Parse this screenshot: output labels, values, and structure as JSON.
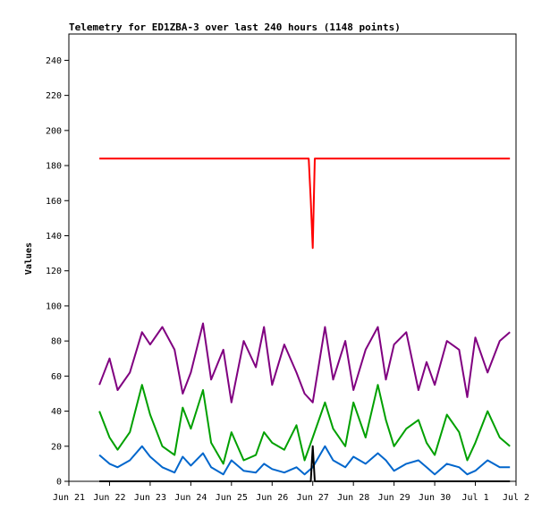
{
  "chart_data": {
    "type": "line",
    "title": "Telemetry for ED1ZBA-3 over last 240 hours (1148 points)",
    "xlabel": "",
    "ylabel": "Values",
    "xlim": [
      0,
      11
    ],
    "ylim": [
      0,
      255
    ],
    "x_ticks": [
      "Jun 21",
      "Jun 22",
      "Jun 23",
      "Jun 24",
      "Jun 25",
      "Jun 26",
      "Jun 27",
      "Jun 28",
      "Jun 29",
      "Jun 30",
      "Jul 1",
      "Jul 2"
    ],
    "y_ticks": [
      0,
      20,
      40,
      60,
      80,
      100,
      120,
      140,
      160,
      180,
      200,
      220,
      240
    ],
    "grid": false,
    "series": [
      {
        "color": "#ff0000",
        "x": [
          0.75,
          5.9,
          5.95,
          6.0,
          6.05,
          6.1,
          10.85
        ],
        "y": [
          184,
          184,
          160,
          133,
          184,
          184,
          184
        ]
      },
      {
        "color": "#800080",
        "x": [
          0.75,
          1.0,
          1.2,
          1.5,
          1.8,
          2.0,
          2.3,
          2.6,
          2.8,
          3.0,
          3.3,
          3.5,
          3.8,
          4.0,
          4.3,
          4.6,
          4.8,
          5.0,
          5.3,
          5.6,
          5.8,
          6.0,
          6.3,
          6.5,
          6.8,
          7.0,
          7.3,
          7.6,
          7.8,
          8.0,
          8.3,
          8.6,
          8.8,
          9.0,
          9.3,
          9.6,
          9.8,
          10.0,
          10.3,
          10.6,
          10.85
        ],
        "y": [
          55,
          70,
          52,
          62,
          85,
          78,
          88,
          75,
          50,
          62,
          90,
          58,
          75,
          45,
          80,
          65,
          88,
          55,
          78,
          62,
          50,
          45,
          88,
          58,
          80,
          52,
          75,
          88,
          58,
          78,
          85,
          52,
          68,
          55,
          80,
          75,
          48,
          82,
          62,
          80,
          85
        ]
      },
      {
        "color": "#00a000",
        "x": [
          0.75,
          1.0,
          1.2,
          1.5,
          1.8,
          2.0,
          2.3,
          2.6,
          2.8,
          3.0,
          3.3,
          3.5,
          3.8,
          4.0,
          4.3,
          4.6,
          4.8,
          5.0,
          5.3,
          5.6,
          5.8,
          6.0,
          6.3,
          6.5,
          6.8,
          7.0,
          7.3,
          7.6,
          7.8,
          8.0,
          8.3,
          8.6,
          8.8,
          9.0,
          9.3,
          9.6,
          9.8,
          10.0,
          10.3,
          10.6,
          10.85
        ],
        "y": [
          40,
          25,
          18,
          28,
          55,
          38,
          20,
          15,
          42,
          30,
          52,
          22,
          10,
          28,
          12,
          15,
          28,
          22,
          18,
          32,
          12,
          25,
          45,
          30,
          20,
          45,
          25,
          55,
          35,
          20,
          30,
          35,
          22,
          15,
          38,
          28,
          12,
          22,
          40,
          25,
          20
        ]
      },
      {
        "color": "#0066cc",
        "x": [
          0.75,
          1.0,
          1.2,
          1.5,
          1.8,
          2.0,
          2.3,
          2.6,
          2.8,
          3.0,
          3.3,
          3.5,
          3.8,
          4.0,
          4.3,
          4.6,
          4.8,
          5.0,
          5.3,
          5.6,
          5.8,
          6.0,
          6.3,
          6.5,
          6.8,
          7.0,
          7.3,
          7.6,
          7.8,
          8.0,
          8.3,
          8.6,
          8.8,
          9.0,
          9.3,
          9.6,
          9.8,
          10.0,
          10.3,
          10.6,
          10.85
        ],
        "y": [
          15,
          10,
          8,
          12,
          20,
          14,
          8,
          5,
          14,
          9,
          16,
          8,
          4,
          12,
          6,
          5,
          10,
          7,
          5,
          8,
          4,
          8,
          20,
          12,
          8,
          14,
          10,
          16,
          12,
          6,
          10,
          12,
          8,
          4,
          10,
          8,
          4,
          6,
          12,
          8,
          8
        ]
      },
      {
        "color": "#000000",
        "x": [
          0.75,
          5.95,
          6.0,
          6.05,
          10.85
        ],
        "y": [
          0,
          0,
          20,
          0,
          0
        ]
      }
    ]
  }
}
